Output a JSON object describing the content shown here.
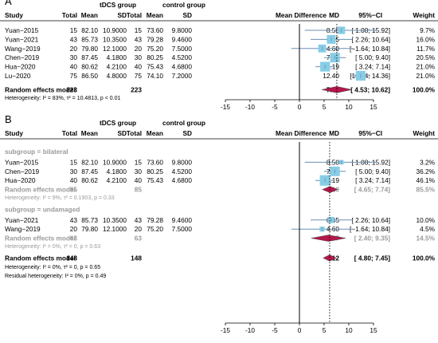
{
  "chart_data": [
    {
      "type": "forest",
      "panel_label": "A",
      "headers": {
        "study": "Study",
        "group1": "tDCS group",
        "group2": "control group",
        "total": "Total",
        "mean": "Mean",
        "sd": "SD",
        "effect": "Mean Difference",
        "md": "MD",
        "ci": "95%−CI",
        "weight": "Weight"
      },
      "x_axis": {
        "ticks": [
          -15,
          -10,
          -5,
          0,
          5,
          10,
          15
        ],
        "xlim": [
          -15,
          15
        ],
        "null_line": 0
      },
      "studies": [
        {
          "study": "Yuan−2015",
          "t_total": "15",
          "t_mean": "82.10",
          "t_sd": "10.9000",
          "c_total": "15",
          "c_mean": "73.60",
          "c_sd": "9.8000",
          "md": 8.5,
          "ci_low": 1.08,
          "ci_high": 15.92,
          "md_text": "8.50",
          "ci_text": "[ 1.08; 15.92]",
          "weight": 9.7,
          "weight_text": "9.7%"
        },
        {
          "study": "Yuan−2021",
          "t_total": "43",
          "t_mean": "85.73",
          "t_sd": "10.3500",
          "c_total": "43",
          "c_mean": "79.28",
          "c_sd": "9.4600",
          "md": 6.45,
          "ci_low": 2.26,
          "ci_high": 10.64,
          "md_text": "6.45",
          "ci_text": "[ 2.26; 10.64]",
          "weight": 16.0,
          "weight_text": "16.0%"
        },
        {
          "study": "Wang−2019",
          "t_total": "20",
          "t_mean": "79.80",
          "t_sd": "12.1000",
          "c_total": "20",
          "c_mean": "75.20",
          "c_sd": "7.5000",
          "md": 4.6,
          "ci_low": -1.64,
          "ci_high": 10.84,
          "md_text": "4.60",
          "ci_text": "[−1.64; 10.84]",
          "weight": 11.7,
          "weight_text": "11.7%"
        },
        {
          "study": "Chen−2019",
          "t_total": "30",
          "t_mean": "87.45",
          "t_sd": "4.1800",
          "c_total": "30",
          "c_mean": "80.25",
          "c_sd": "4.5200",
          "md": 7.2,
          "ci_low": 5.0,
          "ci_high": 9.4,
          "md_text": "7.20",
          "ci_text": "[ 5.00; 9.40]",
          "weight": 20.5,
          "weight_text": "20.5%"
        },
        {
          "study": "Hua−2020",
          "t_total": "40",
          "t_mean": "80.62",
          "t_sd": "4.2100",
          "c_total": "40",
          "c_mean": "75.43",
          "c_sd": "4.6800",
          "md": 5.19,
          "ci_low": 3.24,
          "ci_high": 7.14,
          "md_text": "5.19",
          "ci_text": "[ 3.24; 7.14]",
          "weight": 21.0,
          "weight_text": "21.0%"
        },
        {
          "study": "Lu−2020",
          "t_total": "75",
          "t_mean": "86.50",
          "t_sd": "4.8000",
          "c_total": "75",
          "c_mean": "74.10",
          "c_sd": "7.2000",
          "md": 12.4,
          "ci_low": 10.44,
          "ci_high": 14.36,
          "md_text": "12.40",
          "ci_text": "[10.44; 14.36]",
          "weight": 21.0,
          "weight_text": "21.0%"
        }
      ],
      "pooled": {
        "label": "Random effects model",
        "t_total": "223",
        "c_total": "223",
        "md": 7.57,
        "ci_low": 4.53,
        "ci_high": 10.62,
        "md_text": "7.57",
        "ci_text": "[ 4.53; 10.62]",
        "weight_text": "100.0%"
      },
      "heterogeneity": "Heterogeneity: I² = 83%, τ² = 10.4813, p < 0.01"
    },
    {
      "type": "forest",
      "panel_label": "B",
      "headers": {
        "study": "Study",
        "group1": "tDCS group",
        "group2": "control group",
        "total": "Total",
        "mean": "Mean",
        "sd": "SD",
        "effect": "Mean Difference",
        "md": "MD",
        "ci": "95%−CI",
        "weight": "Weight"
      },
      "x_axis": {
        "ticks": [
          -15,
          -10,
          -5,
          0,
          5,
          10,
          15
        ],
        "xlim": [
          -15,
          15
        ],
        "null_line": 0
      },
      "subgroups": [
        {
          "label": "subgroup = bilateral",
          "studies": [
            {
              "study": "Yuan−2015",
              "t_total": "15",
              "t_mean": "82.10",
              "t_sd": "10.9000",
              "c_total": "15",
              "c_mean": "73.60",
              "c_sd": "9.8000",
              "md": 8.5,
              "ci_low": 1.08,
              "ci_high": 15.92,
              "md_text": "8.50",
              "ci_text": "[ 1.08; 15.92]",
              "weight": 3.2,
              "weight_text": "3.2%"
            },
            {
              "study": "Chen−2019",
              "t_total": "30",
              "t_mean": "87.45",
              "t_sd": "4.1800",
              "c_total": "30",
              "c_mean": "80.25",
              "c_sd": "4.5200",
              "md": 7.2,
              "ci_low": 5.0,
              "ci_high": 9.4,
              "md_text": "7.20",
              "ci_text": "[ 5.00; 9.40]",
              "weight": 36.2,
              "weight_text": "36.2%"
            },
            {
              "study": "Hua−2020",
              "t_total": "40",
              "t_mean": "80.62",
              "t_sd": "4.2100",
              "c_total": "40",
              "c_mean": "75.43",
              "c_sd": "4.6800",
              "md": 5.19,
              "ci_low": 3.24,
              "ci_high": 7.14,
              "md_text": "5.19",
              "ci_text": "[ 3.24; 7.14]",
              "weight": 46.1,
              "weight_text": "46.1%"
            }
          ],
          "pooled": {
            "label": "Random effects model",
            "t_total": "85",
            "c_total": "85",
            "md": 6.19,
            "ci_low": 4.65,
            "ci_high": 7.74,
            "md_text": "6.19",
            "ci_text": "[ 4.65; 7.74]",
            "weight_text": "85.5%"
          },
          "heterogeneity": "Heterogeneity: I² = 9%, τ² = 0.1903, p = 0.33"
        },
        {
          "label": "subgroup = undamaged",
          "studies": [
            {
              "study": "Yuan−2021",
              "t_total": "43",
              "t_mean": "85.73",
              "t_sd": "10.3500",
              "c_total": "43",
              "c_mean": "79.28",
              "c_sd": "9.4600",
              "md": 6.45,
              "ci_low": 2.26,
              "ci_high": 10.64,
              "md_text": "6.45",
              "ci_text": "[ 2.26; 10.64]",
              "weight": 10.0,
              "weight_text": "10.0%"
            },
            {
              "study": "Wang−2019",
              "t_total": "20",
              "t_mean": "79.80",
              "t_sd": "12.1000",
              "c_total": "20",
              "c_mean": "75.20",
              "c_sd": "7.5000",
              "md": 4.6,
              "ci_low": -1.64,
              "ci_high": 10.84,
              "md_text": "4.60",
              "ci_text": "[−1.64; 10.84]",
              "weight": 4.5,
              "weight_text": "4.5%"
            }
          ],
          "pooled": {
            "label": "Random effects model",
            "t_total": "63",
            "c_total": "63",
            "md": 5.87,
            "ci_low": 2.4,
            "ci_high": 9.35,
            "md_text": "5.87",
            "ci_text": "[ 2.40; 9.35]",
            "weight_text": "14.5%"
          },
          "heterogeneity": "Heterogeneity: I² = 0%, τ² = 0, p = 0.63"
        }
      ],
      "pooled": {
        "label": "Random effects model",
        "t_total": "148",
        "c_total": "148",
        "md": 6.12,
        "ci_low": 4.8,
        "ci_high": 7.45,
        "md_text": "6.12",
        "ci_text": "[ 4.80; 7.45]",
        "weight_text": "100.0%"
      },
      "heterogeneity": "Heterogeneity: I² = 0%, τ² = 0, p = 0.65",
      "residual_heterogeneity": "Residual heterogeneity: I² = 0%, p = 0.49"
    }
  ],
  "colors": {
    "box": "#87cde6",
    "diamond": "#b5174a",
    "ci_line": "#6a8fb3",
    "grey_text": "#9a9a9a"
  }
}
